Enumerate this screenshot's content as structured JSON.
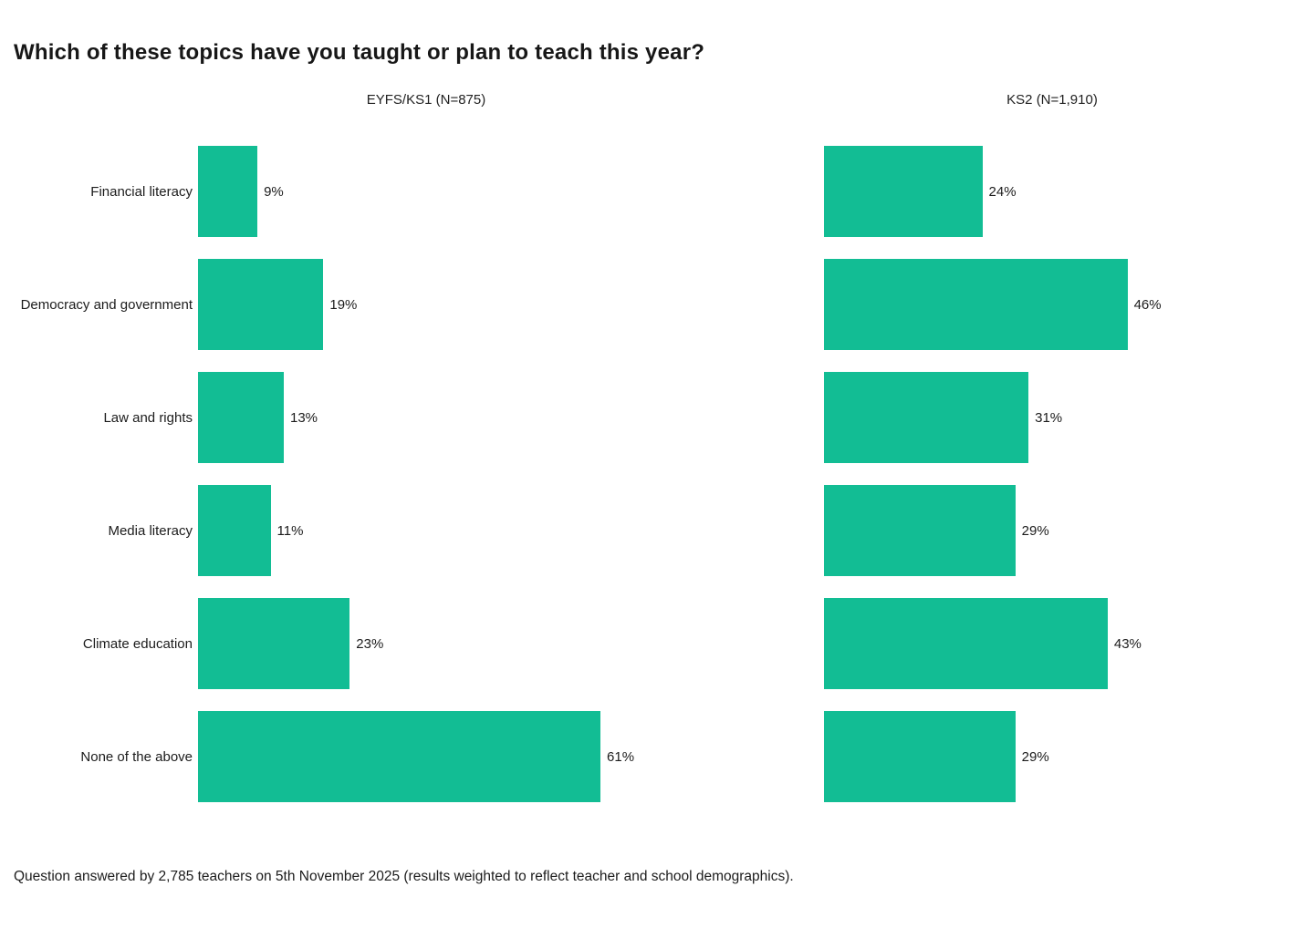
{
  "title": "Which of these topics have you taught or plan to teach this year?",
  "footnote": "Question answered by 2,785 teachers on 5th November 2025 (results weighted to reflect teacher and school demographics).",
  "colors": {
    "bar": "#12bd94",
    "text": "#1c1c1c"
  },
  "chart_data": {
    "type": "bar",
    "orientation": "horizontal",
    "title": "Which of these topics have you taught or plan to teach this year?",
    "categories": [
      "Financial literacy",
      "Democracy and government",
      "Law and rights",
      "Media literacy",
      "Climate education",
      "None of the above"
    ],
    "series": [
      {
        "name": "EYFS/KS1 (N=875)",
        "values": [
          9,
          19,
          13,
          11,
          23,
          61
        ]
      },
      {
        "name": "KS2 (N=1,910)",
        "values": [
          24,
          46,
          31,
          29,
          43,
          29
        ]
      }
    ],
    "value_suffix": "%",
    "data_labels": true,
    "grid": false,
    "xlim": [
      0,
      69
    ],
    "legend_position": "panel-subtitles",
    "annotation": "Question answered by 2,785 teachers on 5th November 2025 (results weighted to reflect teacher and school demographics)."
  }
}
